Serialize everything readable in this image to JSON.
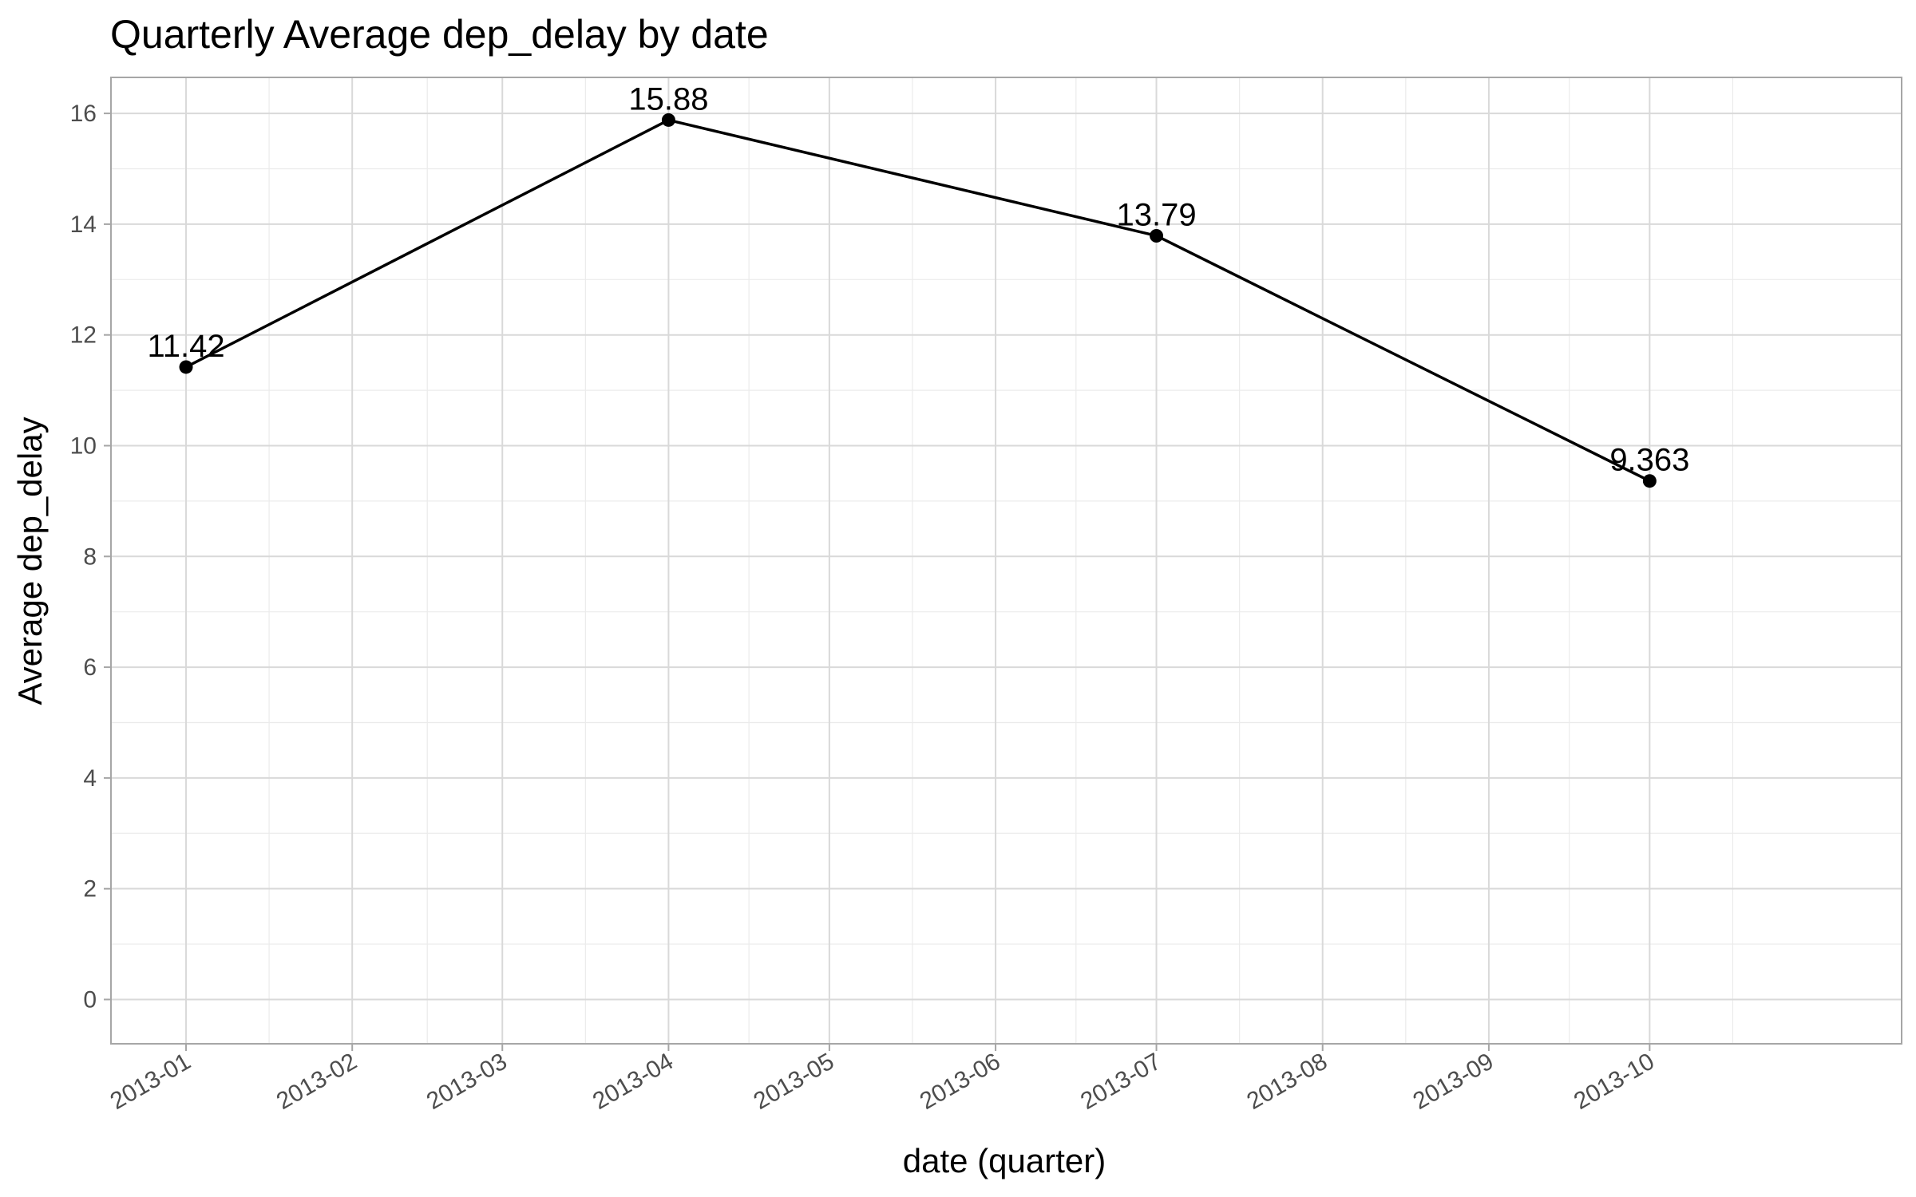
{
  "chart_data": {
    "type": "line",
    "title": "Quarterly Average dep_delay by date",
    "xlabel": "date (quarter)",
    "ylabel": "Average dep_delay",
    "x_ticks": [
      "2013-01",
      "2013-02",
      "2013-03",
      "2013-04",
      "2013-05",
      "2013-06",
      "2013-07",
      "2013-08",
      "2013-09",
      "2013-10"
    ],
    "y_ticks": [
      "0",
      "2",
      "4",
      "6",
      "8",
      "10",
      "12",
      "14",
      "16"
    ],
    "ylim": [
      -0.8,
      16.65
    ],
    "xlim": [
      "2012-12-18",
      "2013-11-17"
    ],
    "grid": true,
    "series": [
      {
        "x": [
          "2013-01-01",
          "2013-04-01",
          "2013-07-01",
          "2013-10-01"
        ],
        "values": [
          11.42,
          15.88,
          13.79,
          9.363
        ],
        "labels": [
          "11.42",
          "15.88",
          "13.79",
          "9.363"
        ],
        "color": "#000000"
      }
    ]
  }
}
